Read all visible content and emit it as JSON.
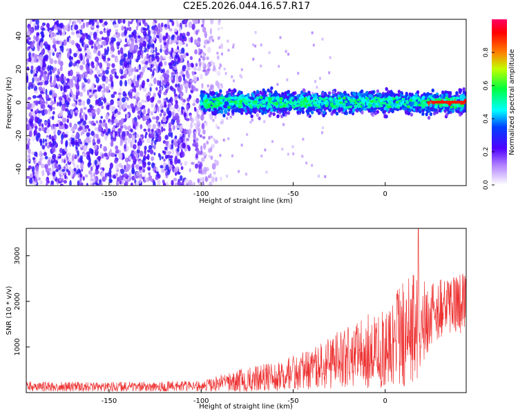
{
  "page": {
    "title": "C2E5.2026.044.16.57.R17"
  },
  "chart_data": [
    {
      "type": "heatmap",
      "xlabel": "Height of straight line (km)",
      "ylabel": "Frequency (Hz)",
      "xlim": [
        -195,
        44
      ],
      "ylim": [
        -50,
        50
      ],
      "x_ticks": [
        -150,
        -100,
        -50,
        0
      ],
      "y_ticks": [
        -40,
        -20,
        0,
        20,
        40
      ],
      "colorbar": {
        "label": "Normalized spectral amplitude",
        "range": [
          0,
          1
        ],
        "ticks": [
          "0.0",
          "0.2",
          "0.4",
          "0.6",
          "0.8"
        ],
        "tick_values": [
          0.0,
          0.2,
          0.4,
          0.6,
          0.8
        ]
      },
      "colorscale": [
        "#ffffff",
        "#7a00ff",
        "#0000ff",
        "#00ffff",
        "#00ff00",
        "#ffff00",
        "#ff0000",
        "#ff0066"
      ],
      "regions": [
        {
          "x_range": [
            -195,
            -100
          ],
          "freq_range": [
            -50,
            50
          ],
          "description_level": 0.12
        },
        {
          "x_range": [
            -100,
            44
          ],
          "freq_center": 0,
          "freq_halfwidth": 8,
          "peak_level": 0.9
        }
      ]
    },
    {
      "type": "line",
      "xlabel": "Height of straight line (km)",
      "ylabel": "SNR (10 * v/v)",
      "xlim": [
        -195,
        44
      ],
      "ylim": [
        0,
        3600
      ],
      "x_ticks": [
        -150,
        -100,
        -50,
        0
      ],
      "y_ticks": [
        1000,
        2000,
        3000
      ],
      "series": [
        {
          "color": "#ee3333",
          "envelope": [
            {
              "x": -195,
              "mean": 130,
              "amp": 110
            },
            {
              "x": -150,
              "mean": 130,
              "amp": 110
            },
            {
              "x": -100,
              "mean": 140,
              "amp": 120
            },
            {
              "x": -80,
              "mean": 250,
              "amp": 250
            },
            {
              "x": -60,
              "mean": 350,
              "amp": 330
            },
            {
              "x": -40,
              "mean": 500,
              "amp": 450
            },
            {
              "x": -20,
              "mean": 800,
              "amp": 700
            },
            {
              "x": 0,
              "mean": 1000,
              "amp": 900
            },
            {
              "x": 15,
              "mean": 1400,
              "amp": 1300
            },
            {
              "x": 25,
              "mean": 1700,
              "amp": 700
            },
            {
              "x": 44,
              "mean": 2000,
              "amp": 700
            }
          ],
          "peak": {
            "x": 18,
            "y": 3600
          }
        }
      ]
    }
  ]
}
